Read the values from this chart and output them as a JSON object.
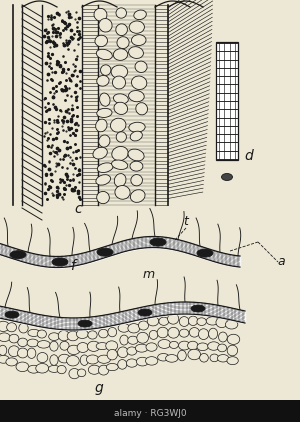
{
  "bg_color": "#ede8d5",
  "line_color": "#1a1a1a",
  "fig_width": 3.0,
  "fig_height": 4.22,
  "dpi": 100,
  "label_c": "c",
  "label_d": "d",
  "label_f": "f",
  "label_g": "g",
  "label_m": "m",
  "label_t": "t",
  "label_a": "a",
  "watermark_text": "alamy · RG3WJ0"
}
